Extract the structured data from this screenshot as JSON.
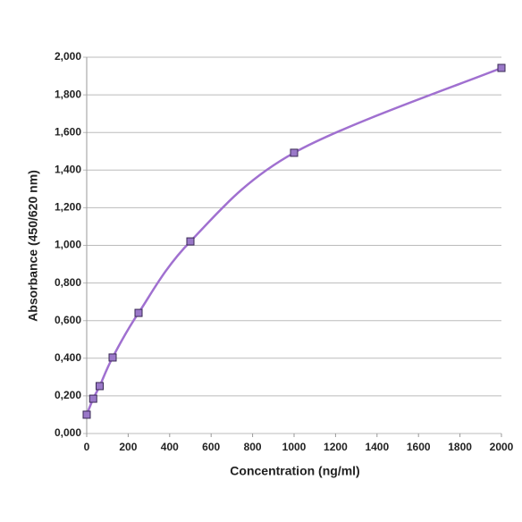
{
  "chart_data": {
    "type": "line",
    "x_label": "Concentration (ng/ml)",
    "y_label": "Absorbance (450/620 nm)",
    "x": [
      0,
      31.25,
      62.5,
      125,
      250,
      500,
      1000,
      2000
    ],
    "values": [
      0.1,
      0.185,
      0.252,
      0.404,
      0.641,
      1.021,
      1.492,
      1.943
    ],
    "color": "#a070d0",
    "marker_color": "#9a78c8",
    "xlim": [
      0,
      2000
    ],
    "xticks": [
      0,
      200,
      400,
      600,
      800,
      1000,
      1200,
      1400,
      1600,
      1800,
      2000
    ],
    "ylim": [
      0,
      2
    ],
    "yticks": [
      {
        "value": 0,
        "label": "0,000"
      },
      {
        "value": 0.2,
        "label": "0,200"
      },
      {
        "value": 0.4,
        "label": "0,400"
      },
      {
        "value": 0.6,
        "label": "0,600"
      },
      {
        "value": 0.8,
        "label": "0,800"
      },
      {
        "value": 1,
        "label": "1,000"
      },
      {
        "value": 1.2,
        "label": "1,200"
      },
      {
        "value": 1.4,
        "label": "1,400"
      },
      {
        "value": 1.6,
        "label": "1,600"
      },
      {
        "value": 1.8,
        "label": "1,800"
      },
      {
        "value": 2,
        "label": "2,000"
      }
    ],
    "grid": true,
    "smooth": true
  }
}
